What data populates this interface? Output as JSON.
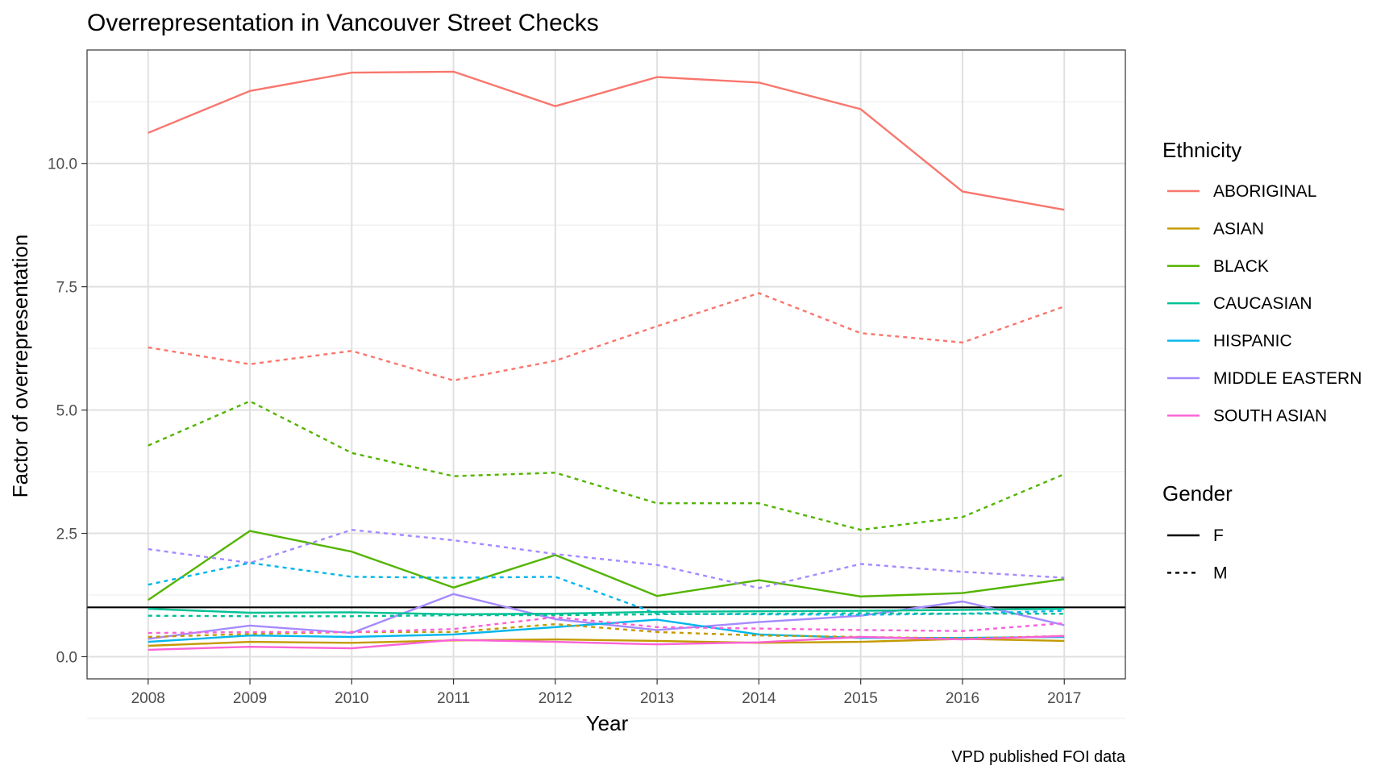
{
  "chart_data": {
    "type": "line",
    "title": "Overrepresentation in Vancouver Street Checks",
    "xlabel": "Year",
    "ylabel": "Factor of overrepresentation",
    "caption": "VPD published FOI data",
    "x": [
      2008,
      2009,
      2010,
      2011,
      2012,
      2013,
      2014,
      2015,
      2016,
      2017
    ],
    "ylim": [
      -0.45,
      12.3
    ],
    "y_ticks": [
      0.0,
      2.5,
      5.0,
      7.5,
      10.0
    ],
    "y_tick_labels": [
      "0.0",
      "2.5",
      "5.0",
      "7.5",
      "10.0"
    ],
    "x_tick_labels": [
      "2008",
      "2009",
      "2010",
      "2011",
      "2012",
      "2013",
      "2014",
      "2015",
      "2016",
      "2017"
    ],
    "reference_line": {
      "y": 1.0,
      "color": "#000000"
    },
    "grid": true,
    "legend_position": "right",
    "legend": {
      "ethnicity_title": "Ethnicity",
      "ethnicities": [
        {
          "label": "ABORIGINAL",
          "color": "#F8766D"
        },
        {
          "label": "ASIAN",
          "color": "#C49A00"
        },
        {
          "label": "BLACK",
          "color": "#53B400"
        },
        {
          "label": "CAUCASIAN",
          "color": "#00C094"
        },
        {
          "label": "HISPANIC",
          "color": "#00B6EB"
        },
        {
          "label": "MIDDLE EASTERN",
          "color": "#A58AFF"
        },
        {
          "label": "SOUTH ASIAN",
          "color": "#FB61D7"
        }
      ],
      "gender_title": "Gender",
      "genders": [
        {
          "label": "F",
          "linetype": "solid"
        },
        {
          "label": "M",
          "linetype": "dashed"
        }
      ]
    },
    "series": [
      {
        "ethnicity": "ABORIGINAL",
        "gender": "F",
        "color": "#F8766D",
        "values": [
          10.62,
          11.47,
          11.84,
          11.86,
          11.16,
          11.75,
          11.64,
          11.1,
          9.43,
          9.06
        ]
      },
      {
        "ethnicity": "ABORIGINAL",
        "gender": "M",
        "color": "#F8766D",
        "values": [
          6.27,
          5.93,
          6.2,
          5.6,
          6.0,
          6.7,
          7.37,
          6.56,
          6.37,
          7.1
        ]
      },
      {
        "ethnicity": "BLACK",
        "gender": "M",
        "color": "#53B400",
        "values": [
          4.28,
          5.18,
          4.13,
          3.66,
          3.73,
          3.11,
          3.11,
          2.57,
          2.83,
          3.7
        ]
      },
      {
        "ethnicity": "BLACK",
        "gender": "F",
        "color": "#53B400",
        "values": [
          1.15,
          2.55,
          2.13,
          1.4,
          2.06,
          1.23,
          1.55,
          1.22,
          1.29,
          1.57
        ]
      },
      {
        "ethnicity": "MIDDLE EASTERN",
        "gender": "M",
        "color": "#A58AFF",
        "values": [
          2.18,
          1.9,
          2.57,
          2.36,
          2.08,
          1.86,
          1.39,
          1.88,
          1.72,
          1.6
        ]
      },
      {
        "ethnicity": "MIDDLE EASTERN",
        "gender": "F",
        "color": "#A58AFF",
        "values": [
          0.36,
          0.63,
          0.48,
          1.27,
          0.76,
          0.54,
          0.7,
          0.83,
          1.12,
          0.64
        ]
      },
      {
        "ethnicity": "HISPANIC",
        "gender": "M",
        "color": "#00B6EB",
        "values": [
          1.46,
          1.9,
          1.62,
          1.6,
          1.62,
          0.87,
          0.86,
          0.85,
          0.87,
          0.93
        ]
      },
      {
        "ethnicity": "HISPANIC",
        "gender": "F",
        "color": "#00B6EB",
        "values": [
          0.3,
          0.43,
          0.4,
          0.45,
          0.6,
          0.75,
          0.45,
          0.38,
          0.38,
          0.4
        ]
      },
      {
        "ethnicity": "CAUCASIAN",
        "gender": "F",
        "color": "#00C094",
        "values": [
          0.97,
          0.89,
          0.9,
          0.86,
          0.87,
          0.91,
          0.92,
          0.93,
          0.95,
          0.97
        ]
      },
      {
        "ethnicity": "CAUCASIAN",
        "gender": "M",
        "color": "#00C094",
        "values": [
          0.83,
          0.82,
          0.82,
          0.84,
          0.84,
          0.86,
          0.87,
          0.88,
          0.87,
          0.87
        ]
      },
      {
        "ethnicity": "ASIAN",
        "gender": "F",
        "color": "#C49A00",
        "values": [
          0.22,
          0.3,
          0.28,
          0.33,
          0.35,
          0.32,
          0.28,
          0.3,
          0.36,
          0.32
        ]
      },
      {
        "ethnicity": "ASIAN",
        "gender": "M",
        "color": "#C49A00",
        "values": [
          0.4,
          0.46,
          0.5,
          0.5,
          0.66,
          0.5,
          0.43,
          0.4,
          0.37,
          0.42
        ]
      },
      {
        "ethnicity": "SOUTH ASIAN",
        "gender": "F",
        "color": "#FB61D7",
        "values": [
          0.14,
          0.2,
          0.17,
          0.34,
          0.3,
          0.25,
          0.29,
          0.4,
          0.35,
          0.42
        ]
      },
      {
        "ethnicity": "SOUTH ASIAN",
        "gender": "M",
        "color": "#FB61D7",
        "values": [
          0.48,
          0.5,
          0.5,
          0.56,
          0.8,
          0.6,
          0.57,
          0.54,
          0.52,
          0.68
        ]
      }
    ]
  }
}
